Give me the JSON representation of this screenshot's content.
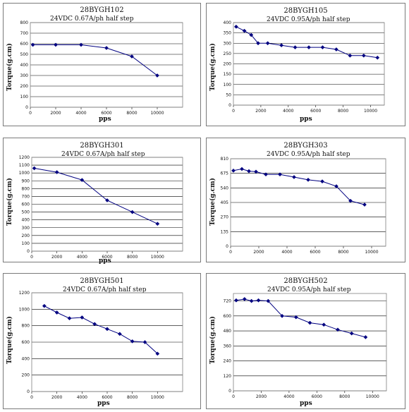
{
  "charts": [
    {
      "chart_data": {
        "type": "line",
        "title": "28BYGH102",
        "subtitle": "24VDC 0.67A/ph half step",
        "xlabel": "pps",
        "ylabel": "Torque(g.cm)",
        "xlim": [
          0,
          12000
        ],
        "ylim": [
          0,
          800
        ],
        "xticks": [
          0,
          2000,
          4000,
          6000,
          8000,
          10000
        ],
        "yticks": [
          0,
          100,
          200,
          300,
          400,
          500,
          600,
          700,
          800
        ],
        "grid": true,
        "x": [
          200,
          2000,
          4000,
          6000,
          8000,
          10000
        ],
        "y": [
          590,
          590,
          590,
          560,
          480,
          300
        ]
      }
    },
    {
      "chart_data": {
        "type": "line",
        "title": "28BYGH105",
        "subtitle": "24VDC 0.95A/ph half step",
        "xlabel": "pps",
        "ylabel": "Torque(g.cm)",
        "xlim": [
          0,
          11000
        ],
        "ylim": [
          0,
          400
        ],
        "xticks": [
          0,
          2000,
          4000,
          6000,
          8000,
          10000
        ],
        "yticks": [
          0,
          50,
          100,
          150,
          200,
          250,
          300,
          350,
          400
        ],
        "grid": true,
        "x": [
          200,
          800,
          1300,
          1800,
          2500,
          3500,
          4500,
          5500,
          6500,
          7500,
          8500,
          9500,
          10500
        ],
        "y": [
          380,
          360,
          340,
          300,
          300,
          290,
          280,
          280,
          280,
          270,
          240,
          240,
          230
        ]
      }
    },
    {
      "chart_data": {
        "type": "line",
        "title": "28BYGH301",
        "subtitle": "24VDC 0.67A/ph half step",
        "xlabel": "pps",
        "ylabel": "Torque(g.cm)",
        "xlim": [
          0,
          12000
        ],
        "ylim": [
          0,
          1200
        ],
        "xticks": [
          0,
          2000,
          4000,
          6000,
          8000,
          10000
        ],
        "yticks": [
          0,
          100,
          200,
          300,
          400,
          500,
          600,
          700,
          800,
          900,
          1000,
          1100,
          1200
        ],
        "grid": true,
        "x": [
          200,
          2000,
          4000,
          6000,
          8000,
          10000
        ],
        "y": [
          1060,
          1010,
          910,
          650,
          500,
          350
        ]
      }
    },
    {
      "chart_data": {
        "type": "line",
        "title": "28BYGH303",
        "subtitle": "24VDC 0.95A/ph half step",
        "xlabel": "",
        "ylabel": "Torque(g.cm)",
        "xlim": [
          0,
          11000
        ],
        "ylim": [
          0,
          810
        ],
        "xticks": [
          0,
          2000,
          4000,
          6000,
          8000,
          10000
        ],
        "yticks": [
          0,
          135,
          270,
          405,
          540,
          675,
          810
        ],
        "grid": true,
        "x": [
          200,
          800,
          1300,
          1800,
          2500,
          3500,
          4500,
          5500,
          6500,
          7500,
          8500,
          9500
        ],
        "y": [
          700,
          715,
          695,
          690,
          665,
          665,
          640,
          615,
          600,
          555,
          420,
          385
        ]
      }
    },
    {
      "chart_data": {
        "type": "line",
        "title": "28BYGH501",
        "subtitle": "24VDC 0.67A/ph half step",
        "xlabel": "pps",
        "ylabel": "Torque(g.cm)",
        "xlim": [
          0,
          12000
        ],
        "ylim": [
          0,
          1200
        ],
        "xticks": [
          0,
          2000,
          4000,
          6000,
          8000,
          10000
        ],
        "yticks": [
          0,
          200,
          400,
          600,
          800,
          1000,
          1200
        ],
        "grid": true,
        "x": [
          1000,
          2000,
          3000,
          4000,
          5000,
          6000,
          7000,
          8000,
          9000,
          10000
        ],
        "y": [
          1040,
          960,
          890,
          900,
          820,
          760,
          700,
          610,
          600,
          460
        ]
      }
    },
    {
      "chart_data": {
        "type": "line",
        "title": "28BYGH502",
        "subtitle": "24VDC 0.95A/ph half step",
        "xlabel": "pps",
        "ylabel": "Torque(g.cm)",
        "xlim": [
          0,
          11000
        ],
        "ylim": [
          0,
          780
        ],
        "xticks": [
          0,
          2000,
          4000,
          6000,
          8000,
          10000
        ],
        "yticks": [
          0,
          120,
          240,
          360,
          480,
          600,
          720
        ],
        "grid": true,
        "x": [
          200,
          800,
          1300,
          1800,
          2500,
          3500,
          4500,
          5500,
          6500,
          7500,
          8500,
          9500
        ],
        "y": [
          725,
          735,
          720,
          725,
          720,
          600,
          590,
          545,
          530,
          490,
          460,
          430
        ]
      }
    }
  ]
}
